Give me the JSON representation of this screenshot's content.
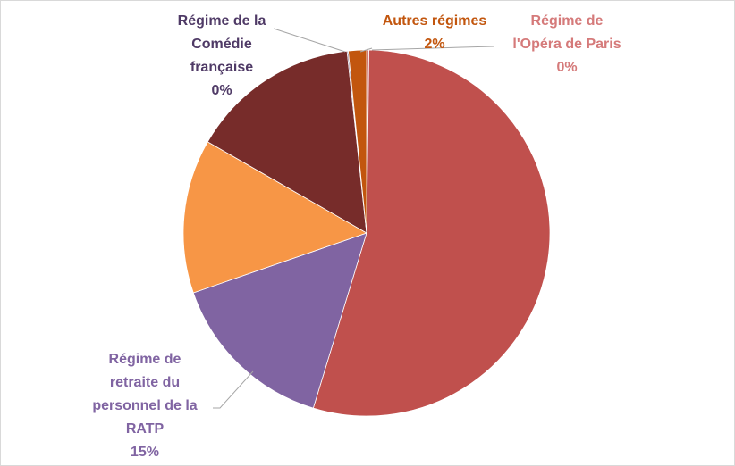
{
  "chart_data": {
    "type": "pie",
    "legend": "none",
    "slices": [
      {
        "value": 0.2,
        "color": "#d57a7a",
        "label_lines": [
          "Régime de",
          "l'Opéra de Paris"
        ],
        "pct": "0%",
        "label_color": "#d57a7a"
      },
      {
        "value": 54.5,
        "color": "#c0504d",
        "label_lines": [],
        "pct": "",
        "label_color": "#c0504d"
      },
      {
        "value": 15.0,
        "color": "#8064a2",
        "label_lines": [
          "Régime de",
          "retraite du",
          "personnel de la",
          "RATP"
        ],
        "pct": "15%",
        "label_color": "#8064a2"
      },
      {
        "value": 13.6,
        "color": "#f79646",
        "label_lines": [],
        "pct": "",
        "label_color": "#f79646"
      },
      {
        "value": 15.0,
        "color": "#772c2a",
        "label_lines": [],
        "pct": "",
        "label_color": "#772c2a"
      },
      {
        "value": 0.1,
        "color": "#4f3a66",
        "label_lines": [
          "Régime de la",
          "Comédie",
          "française"
        ],
        "pct": "0%",
        "label_color": "#4f3a66"
      },
      {
        "value": 1.6,
        "color": "#c2560e",
        "label_lines": [
          "Autres régimes"
        ],
        "pct": "2%",
        "label_color": "#c2560e"
      }
    ]
  }
}
